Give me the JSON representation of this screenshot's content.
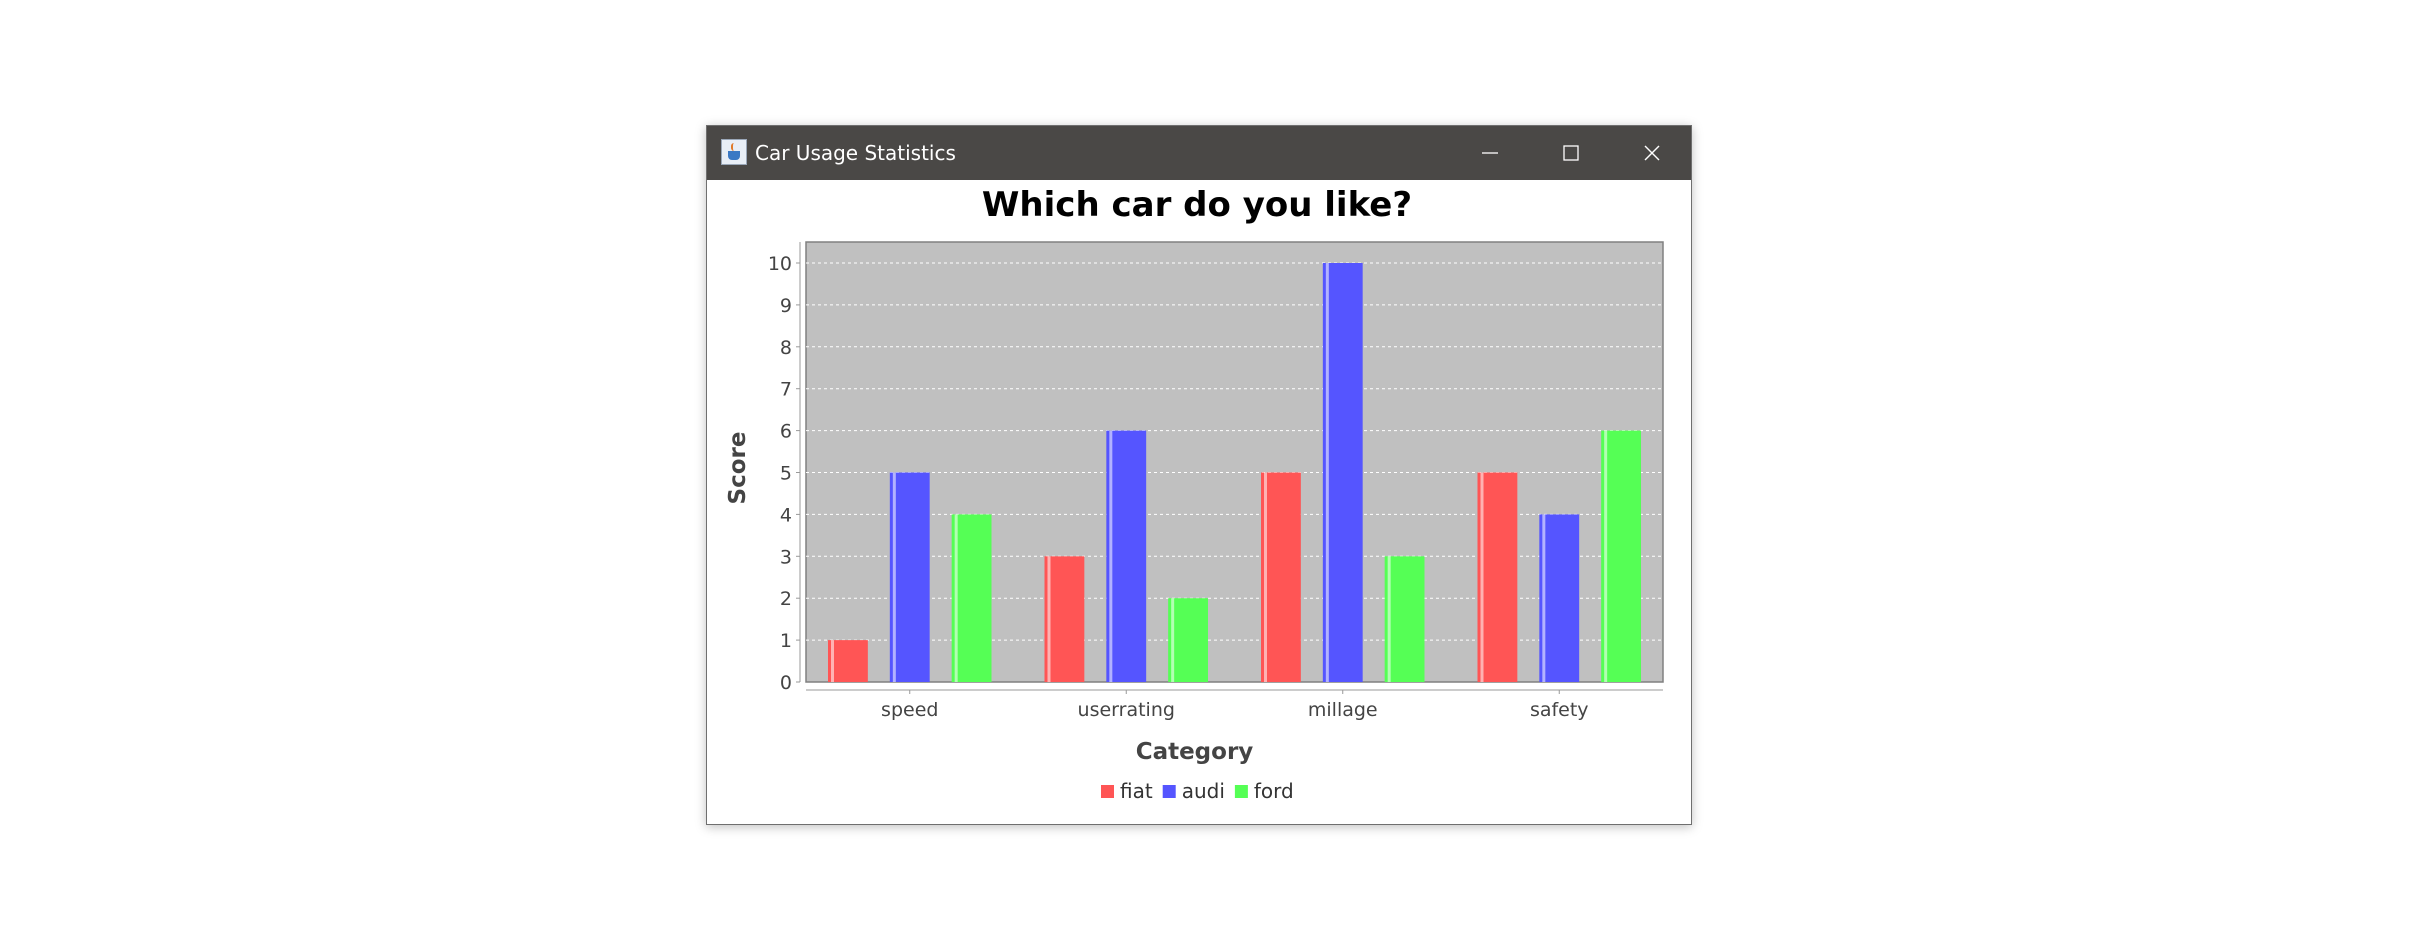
{
  "window": {
    "title": "Car Usage Statistics",
    "icon": "java-cup-icon",
    "controls": [
      "minimize-icon",
      "maximize-icon",
      "close-icon"
    ]
  },
  "colors": {
    "fiat": "#ff5555",
    "audi": "#5555ff",
    "ford": "#55ff55",
    "plot_background": "#c0c0c0",
    "titlebar": "#4a4846"
  },
  "chart_data": {
    "type": "bar",
    "title": "Which car do you like?",
    "xlabel": "Category",
    "ylabel": "Score",
    "categories": [
      "speed",
      "userrating",
      "millage",
      "safety"
    ],
    "series": [
      {
        "name": "fiat",
        "values": [
          1,
          3,
          5,
          5
        ]
      },
      {
        "name": "audi",
        "values": [
          5,
          6,
          10,
          4
        ]
      },
      {
        "name": "ford",
        "values": [
          4,
          2,
          3,
          6
        ]
      }
    ],
    "ylim": [
      0,
      10
    ],
    "yticks": [
      0,
      1,
      2,
      3,
      4,
      5,
      6,
      7,
      8,
      9,
      10
    ],
    "grid": true,
    "legend": "bottom"
  }
}
